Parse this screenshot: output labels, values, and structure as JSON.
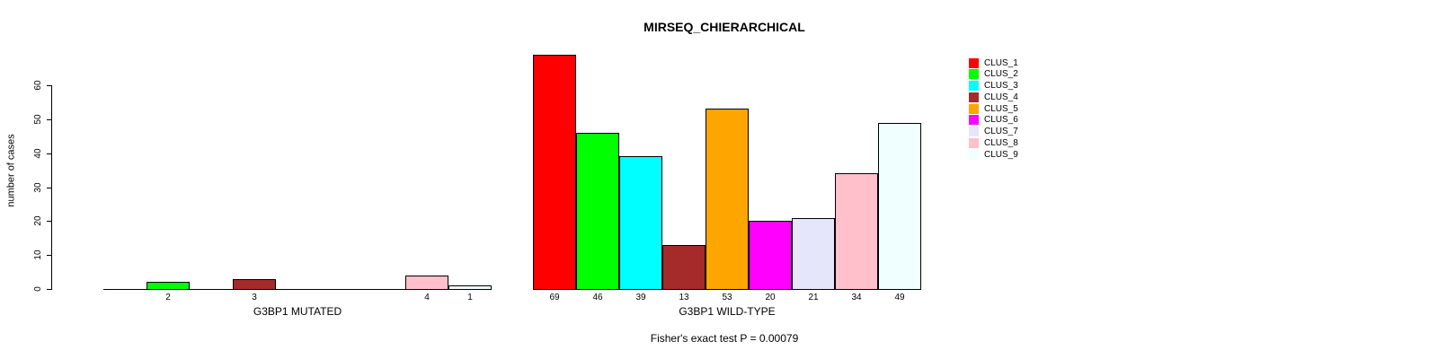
{
  "chart_data": {
    "type": "bar",
    "title": "MIRSEQ_CHIERARCHICAL",
    "ylabel": "number of cases",
    "ylim": [
      0,
      69
    ],
    "yticks": [
      0,
      10,
      20,
      30,
      40,
      50,
      60
    ],
    "grid": false,
    "legend_position": "right",
    "categories": [
      "CLUS_1",
      "CLUS_2",
      "CLUS_3",
      "CLUS_4",
      "CLUS_5",
      "CLUS_6",
      "CLUS_7",
      "CLUS_8",
      "CLUS_9"
    ],
    "colors": [
      "#FF0000",
      "#00FF00",
      "#00FFFF",
      "#A52A2A",
      "#FFA500",
      "#FF00FF",
      "#E6E6FA",
      "#FFC0CB",
      "#F0FFFF"
    ],
    "series": [
      {
        "name": "G3BP1 MUTATED",
        "values": [
          0,
          2,
          0,
          3,
          0,
          0,
          0,
          4,
          1
        ],
        "bar_labels": [
          "",
          "2",
          "",
          "3",
          "",
          "",
          "",
          "4",
          "1"
        ]
      },
      {
        "name": "G3BP1 WILD-TYPE",
        "values": [
          69,
          46,
          39,
          13,
          53,
          20,
          21,
          34,
          49
        ],
        "bar_labels": [
          "69",
          "46",
          "39",
          "13",
          "53",
          "20",
          "21",
          "34",
          "49"
        ]
      }
    ],
    "annotation": "Fisher's exact test P = 0.00079"
  }
}
